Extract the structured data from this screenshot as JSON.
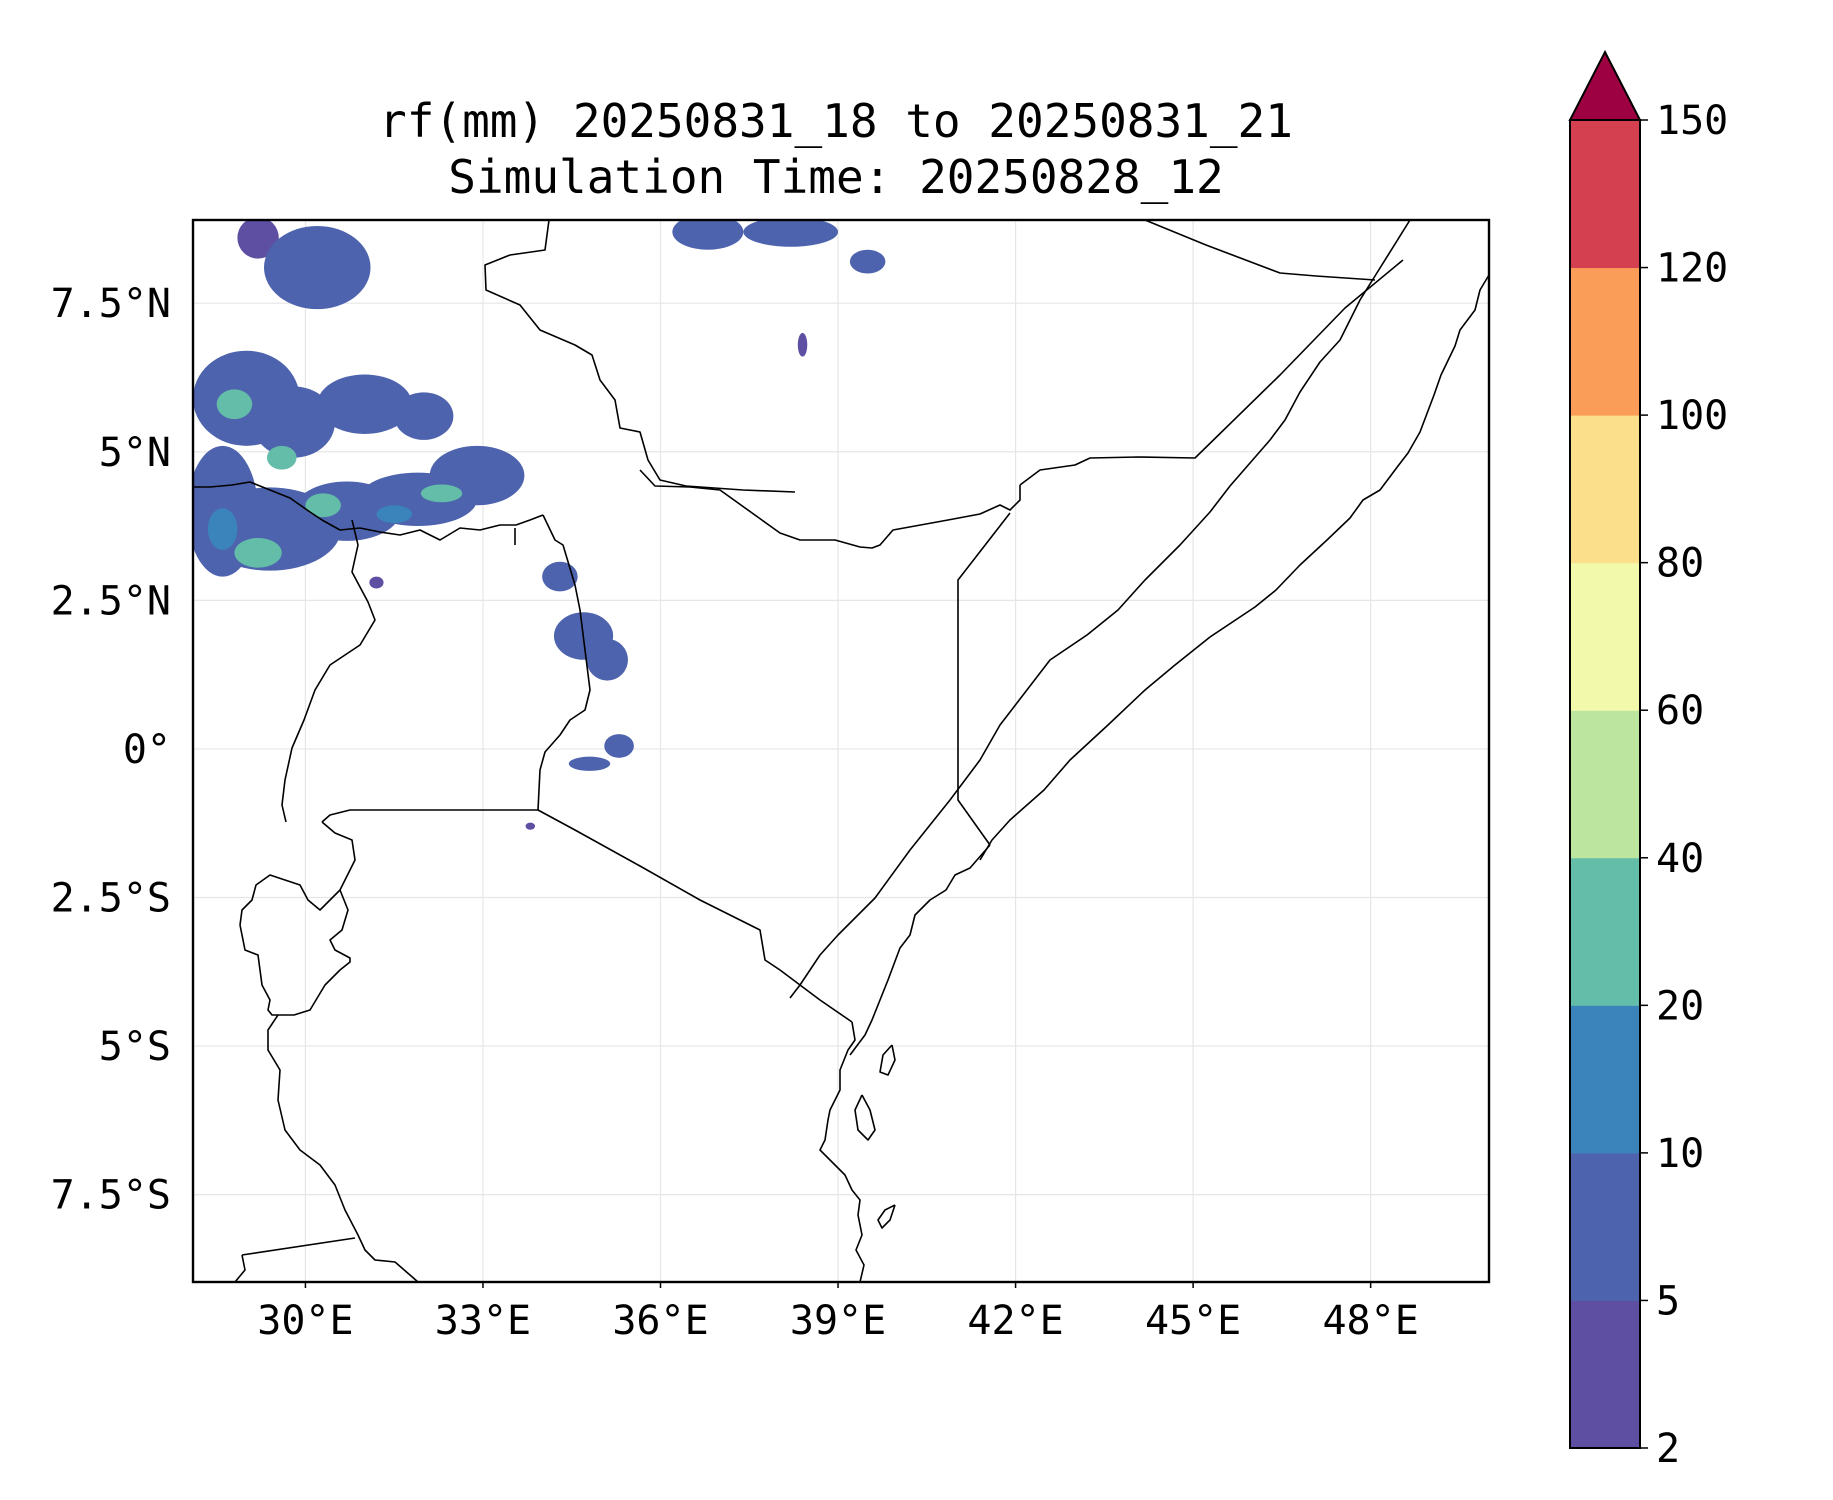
{
  "title": {
    "line1": "rf(mm) 20250831_18 to 20250831_21",
    "line2": "Simulation Time: 20250828_12"
  },
  "map": {
    "lon_range": [
      28.1,
      50.0
    ],
    "lat_range": [
      -8.97,
      8.9
    ],
    "gridlines": true,
    "x_ticks": [
      {
        "value": 30,
        "label": "30°E"
      },
      {
        "value": 33,
        "label": "33°E"
      },
      {
        "value": 36,
        "label": "36°E"
      },
      {
        "value": 39,
        "label": "39°E"
      },
      {
        "value": 42,
        "label": "42°E"
      },
      {
        "value": 45,
        "label": "45°E"
      },
      {
        "value": 48,
        "label": "48°E"
      }
    ],
    "y_ticks": [
      {
        "value": 7.5,
        "label": "7.5°N"
      },
      {
        "value": 5,
        "label": "5°N"
      },
      {
        "value": 2.5,
        "label": "2.5°N"
      },
      {
        "value": 0,
        "label": "0°"
      },
      {
        "value": -2.5,
        "label": "2.5°S"
      },
      {
        "value": -5,
        "label": "5°S"
      },
      {
        "value": -7.5,
        "label": "7.5°S"
      }
    ],
    "rain_patches": [
      {
        "lon": 29.2,
        "lat": 8.6,
        "rx": 0.35,
        "ry": 0.35,
        "level": 0
      },
      {
        "lon": 30.2,
        "lat": 8.1,
        "rx": 0.9,
        "ry": 0.7,
        "level": 1
      },
      {
        "lon": 29.0,
        "lat": 5.9,
        "rx": 0.9,
        "ry": 0.8,
        "level": 1
      },
      {
        "lon": 29.8,
        "lat": 5.5,
        "rx": 0.7,
        "ry": 0.6,
        "level": 1
      },
      {
        "lon": 31.0,
        "lat": 5.8,
        "rx": 0.8,
        "ry": 0.5,
        "level": 1
      },
      {
        "lon": 32.0,
        "lat": 5.6,
        "rx": 0.5,
        "ry": 0.4,
        "level": 1
      },
      {
        "lon": 32.9,
        "lat": 4.6,
        "rx": 0.8,
        "ry": 0.5,
        "level": 1
      },
      {
        "lon": 28.6,
        "lat": 4.0,
        "rx": 0.6,
        "ry": 1.1,
        "level": 1
      },
      {
        "lon": 29.4,
        "lat": 3.7,
        "rx": 1.2,
        "ry": 0.7,
        "level": 1
      },
      {
        "lon": 30.7,
        "lat": 4.0,
        "rx": 0.9,
        "ry": 0.5,
        "level": 1
      },
      {
        "lon": 31.9,
        "lat": 4.2,
        "rx": 1.0,
        "ry": 0.45,
        "level": 1
      },
      {
        "lon": 28.8,
        "lat": 5.8,
        "rx": 0.3,
        "ry": 0.25,
        "level": 3
      },
      {
        "lon": 29.6,
        "lat": 4.9,
        "rx": 0.25,
        "ry": 0.2,
        "level": 3
      },
      {
        "lon": 29.2,
        "lat": 3.3,
        "rx": 0.4,
        "ry": 0.25,
        "level": 3
      },
      {
        "lon": 30.3,
        "lat": 4.1,
        "rx": 0.3,
        "ry": 0.2,
        "level": 3
      },
      {
        "lon": 32.3,
        "lat": 4.3,
        "rx": 0.35,
        "ry": 0.15,
        "level": 3
      },
      {
        "lon": 28.6,
        "lat": 3.7,
        "rx": 0.25,
        "ry": 0.35,
        "level": 2
      },
      {
        "lon": 31.5,
        "lat": 3.95,
        "rx": 0.3,
        "ry": 0.15,
        "level": 2
      },
      {
        "lon": 36.8,
        "lat": 8.7,
        "rx": 0.6,
        "ry": 0.3,
        "level": 1
      },
      {
        "lon": 38.2,
        "lat": 8.7,
        "rx": 0.8,
        "ry": 0.25,
        "level": 1
      },
      {
        "lon": 39.5,
        "lat": 8.2,
        "rx": 0.3,
        "ry": 0.2,
        "level": 1
      },
      {
        "lon": 38.4,
        "lat": 6.8,
        "rx": 0.08,
        "ry": 0.2,
        "level": 0
      },
      {
        "lon": 34.7,
        "lat": 1.9,
        "rx": 0.5,
        "ry": 0.4,
        "level": 1
      },
      {
        "lon": 35.1,
        "lat": 1.5,
        "rx": 0.35,
        "ry": 0.35,
        "level": 1
      },
      {
        "lon": 34.3,
        "lat": 2.9,
        "rx": 0.3,
        "ry": 0.25,
        "level": 1
      },
      {
        "lon": 35.3,
        "lat": 0.05,
        "rx": 0.25,
        "ry": 0.2,
        "level": 1
      },
      {
        "lon": 34.8,
        "lat": -0.25,
        "rx": 0.35,
        "ry": 0.12,
        "level": 1
      },
      {
        "lon": 31.2,
        "lat": 2.8,
        "rx": 0.12,
        "ry": 0.1,
        "level": 0
      },
      {
        "lon": 33.8,
        "lat": -1.3,
        "rx": 0.08,
        "ry": 0.06,
        "level": 0
      }
    ]
  },
  "colorbar": {
    "colors": [
      "#5e4fa2",
      "#4e63ad",
      "#3b83bb",
      "#63bda8",
      "#bce59f",
      "#f3f9ab",
      "#fcdf8a",
      "#f99d59",
      "#d54050"
    ],
    "extend_color": "#9e0142",
    "bounds": [
      "2",
      "5",
      "10",
      "20",
      "40",
      "60",
      "80",
      "100",
      "120",
      "150"
    ]
  }
}
